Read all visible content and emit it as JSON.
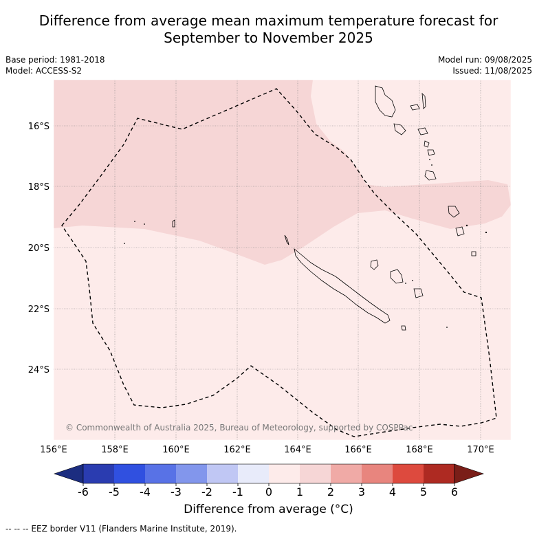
{
  "title": {
    "line1": "Difference from average mean maximum temperature forecast for",
    "line2": "September to November 2025"
  },
  "meta": {
    "base_period": "Base period: 1981-2018",
    "model": "Model: ACCESS-S2",
    "model_run": "Model run: 09/08/2025",
    "issued": "Issued: 11/08/2025"
  },
  "map": {
    "lon_labels": [
      "156°E",
      "158°E",
      "160°E",
      "162°E",
      "164°E",
      "166°E",
      "168°E",
      "170°E"
    ],
    "lat_labels": [
      "16°S",
      "18°S",
      "20°S",
      "22°S",
      "24°S"
    ],
    "copyright": "© Commonwealth of Australia 2025, Bureau of Meteorology, supported by COSPPac",
    "colors": {
      "anomaly_0_1": "#fdebea",
      "anomaly_1_2": "#f6d6d6"
    }
  },
  "colorbar": {
    "ticks": [
      "-6",
      "-5",
      "-4",
      "-3",
      "-2",
      "-1",
      "0",
      "1",
      "2",
      "3",
      "4",
      "5",
      "6"
    ],
    "colors": [
      "#2a3cb0",
      "#3050e0",
      "#5872e6",
      "#8296ec",
      "#c0c7f4",
      "#e8ebfa",
      "#fdebea",
      "#f6d6d6",
      "#f0aaa6",
      "#e8857e",
      "#dd4a3e",
      "#ae2a22"
    ],
    "under_color": "#1c2d80",
    "over_color": "#7a1e18",
    "label": "Difference from average (°C)"
  },
  "footer": "--  --  -- EEZ border V11 (Flanders Marine Institute, 2019)."
}
